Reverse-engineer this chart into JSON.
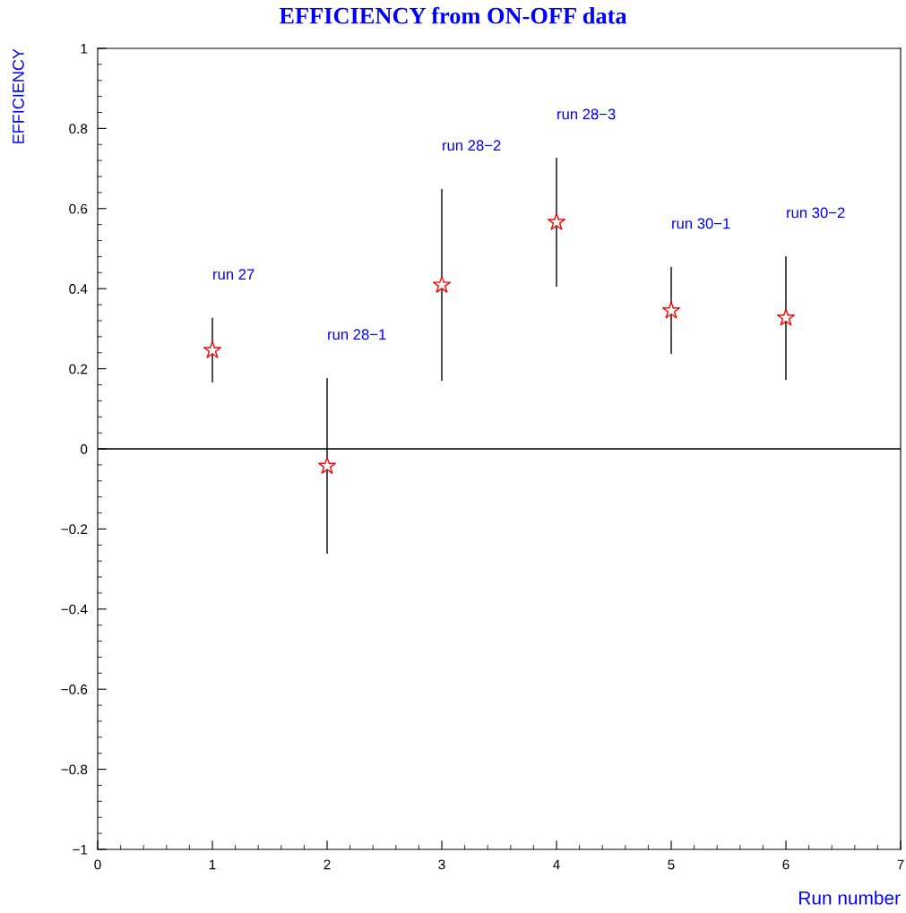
{
  "chart_data": {
    "type": "scatter",
    "title": "EFFICIENCY from ON-OFF data",
    "xlabel": "Run number",
    "ylabel": "EFFICIENCY",
    "x": [
      1,
      2,
      3,
      4,
      5,
      6
    ],
    "series": [
      {
        "color": "#ff0000",
        "values": [
          0.246,
          -0.043,
          0.409,
          0.566,
          0.345,
          0.327
        ],
        "errors": [
          [
            0.166,
            0.327
          ],
          [
            -0.262,
            0.177
          ],
          [
            0.17,
            0.649
          ],
          [
            0.405,
            0.727
          ],
          [
            0.237,
            0.454
          ],
          [
            0.172,
            0.481
          ]
        ]
      }
    ],
    "marker": "star",
    "xlim": [
      0,
      7
    ],
    "ylim": [
      -1,
      1
    ],
    "xticks": [
      0,
      1,
      2,
      3,
      4,
      5,
      6,
      7
    ],
    "yticks": [
      {
        "value": -1,
        "label": "−1"
      },
      {
        "value": -0.8,
        "label": "−0.8"
      },
      {
        "value": -0.6,
        "label": "−0.6"
      },
      {
        "value": -0.4,
        "label": "−0.4"
      },
      {
        "value": -0.2,
        "label": "−0.2"
      },
      0,
      0.2,
      0.4,
      0.6,
      0.8,
      1
    ],
    "ref_lines": [
      {
        "axis": "y",
        "value": 0,
        "color": "#000000"
      }
    ],
    "annotations": [
      "run 27",
      "run 28−1",
      "run 28−2",
      "run 28−3",
      "run 30−1",
      "run 30−2"
    ],
    "grid": false,
    "legend": false
  }
}
